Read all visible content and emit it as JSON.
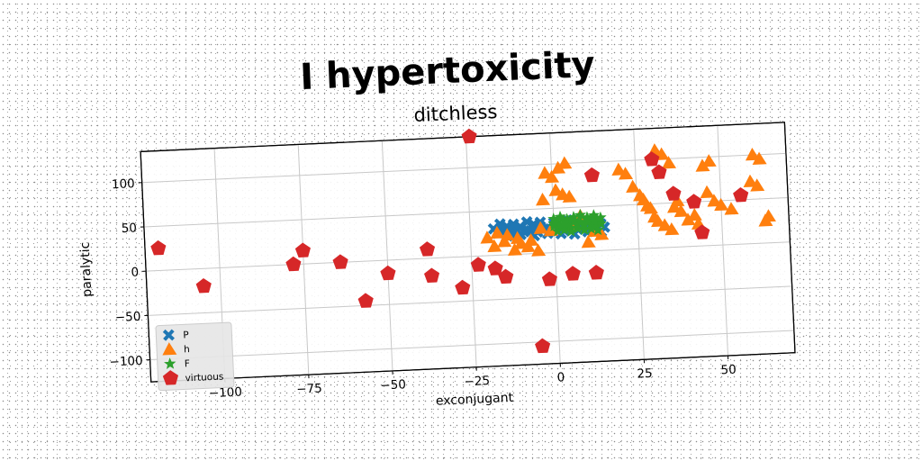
{
  "chart_data": {
    "type": "scatter",
    "title": "I hypertoxicity",
    "subtitle": "ditchless",
    "xlabel": "exconjugant",
    "ylabel": "paralytic",
    "xlim": [
      -122,
      70
    ],
    "ylim": [
      -125,
      135
    ],
    "xticks": [
      -100,
      -75,
      -50,
      -25,
      0,
      25,
      50
    ],
    "yticks": [
      -100,
      -50,
      0,
      50,
      100
    ],
    "x_tick_labels": [
      "−100",
      "−75",
      "−50",
      "−25",
      "0",
      "25",
      "50"
    ],
    "y_tick_labels": [
      "−100",
      "−50",
      "0",
      "50",
      "100"
    ],
    "grid": true,
    "legend_position": "lower-left",
    "series": [
      {
        "name": "P",
        "marker": "x",
        "color": "#1f77b4",
        "x": [
          -18,
          -16,
          -14,
          -12,
          -10,
          -8,
          -6,
          -4,
          -2,
          0,
          2,
          4,
          6,
          8,
          10,
          12,
          14,
          -17,
          -15,
          -13,
          -11,
          -9,
          -7,
          -5,
          -3,
          -1,
          1,
          3,
          5,
          7,
          9,
          11,
          13,
          15,
          -16,
          -12,
          -8,
          -4,
          0,
          4,
          8,
          12,
          -14,
          -10,
          -6,
          -2,
          2,
          6,
          10,
          14
        ],
        "y": [
          30,
          28,
          32,
          29,
          31,
          27,
          33,
          30,
          28,
          31,
          29,
          32,
          30,
          28,
          31,
          29,
          30,
          25,
          26,
          24,
          27,
          25,
          26,
          24,
          27,
          25,
          26,
          24,
          27,
          25,
          26,
          24,
          25,
          26,
          35,
          34,
          36,
          35,
          34,
          36,
          35,
          34,
          21,
          22,
          20,
          22,
          21,
          20,
          22,
          21
        ]
      },
      {
        "name": "h",
        "marker": "triangle",
        "color": "#ff7f0e",
        "x": [
          -20,
          -18,
          -15,
          -12,
          -10,
          -8,
          -5,
          -17,
          -14,
          -11,
          -7,
          -4,
          -2,
          0,
          1,
          3,
          5,
          6,
          8,
          10,
          12,
          14,
          -1,
          2,
          4,
          -3,
          20,
          22,
          24,
          26,
          27,
          29,
          30,
          31,
          33,
          35,
          36,
          38,
          40,
          42,
          43,
          45,
          47,
          48,
          50,
          53,
          60,
          62,
          64,
          59,
          61,
          63,
          31,
          33,
          35,
          28,
          37,
          46
        ],
        "y": [
          20,
          10,
          15,
          5,
          12,
          8,
          3,
          25,
          22,
          18,
          15,
          28,
          90,
          85,
          70,
          65,
          62,
          30,
          40,
          10,
          22,
          18,
          25,
          95,
          100,
          60,
          90,
          85,
          70,
          60,
          55,
          45,
          35,
          30,
          25,
          20,
          45,
          40,
          30,
          35,
          25,
          90,
          95,
          50,
          45,
          40,
          100,
          95,
          30,
          70,
          65,
          25,
          110,
          105,
          95,
          48,
          52,
          60
        ]
      },
      {
        "name": "F",
        "marker": "star",
        "color": "#2ca02c",
        "x": [
          0,
          1,
          2,
          3,
          4,
          5,
          6,
          7,
          8,
          9,
          10,
          11,
          12,
          13,
          14,
          0,
          2,
          4,
          6,
          8,
          10,
          12,
          14,
          1,
          3,
          5,
          7,
          9,
          11,
          13,
          0,
          3,
          6,
          9,
          12
        ],
        "y": [
          30,
          34,
          28,
          36,
          31,
          27,
          35,
          30,
          33,
          29,
          36,
          31,
          28,
          35,
          30,
          38,
          40,
          37,
          39,
          41,
          38,
          40,
          37,
          24,
          25,
          23,
          26,
          24,
          25,
          23,
          33,
          32,
          34,
          31,
          33
        ]
      },
      {
        "name": "virtuous",
        "marker": "pentagon",
        "color": "#d62728",
        "x": [
          -118,
          -105,
          -78,
          -75,
          -64,
          -57,
          -50,
          -38,
          -37,
          -28,
          -23,
          -18,
          -15,
          -24,
          -2,
          5,
          12,
          12,
          32,
          30,
          36,
          42,
          44,
          56,
          -5
        ],
        "y": [
          25,
          -20,
          0,
          15,
          0,
          -45,
          -15,
          10,
          -20,
          -35,
          -10,
          -15,
          -25,
          135,
          -30,
          -25,
          -25,
          85,
          85,
          100,
          60,
          50,
          15,
          55,
          -105
        ]
      }
    ]
  }
}
